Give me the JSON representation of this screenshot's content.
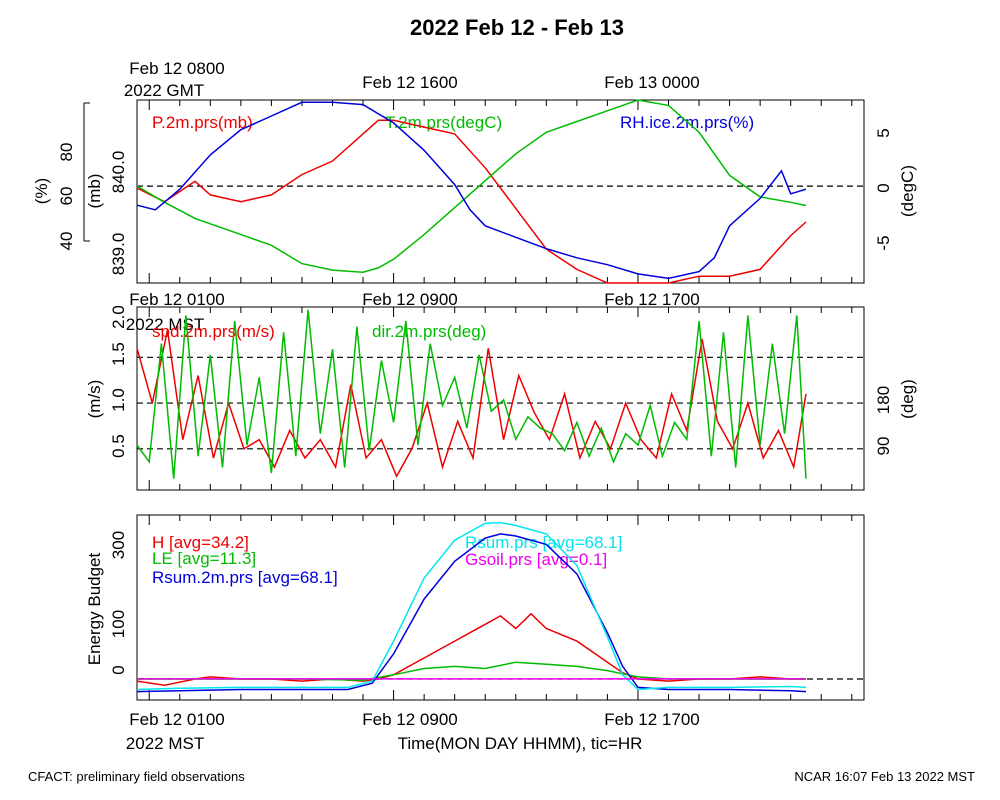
{
  "title": "2022 Feb 12 - Feb 13",
  "footer": {
    "left": "CFACT: preliminary field observations",
    "right": "NCAR 16:07 Feb 13 2022 MST"
  },
  "colors": {
    "red": "#ee0000",
    "green": "#00bb00",
    "blue": "#0000dd",
    "cyan": "#00e5ee",
    "magenta": "#ee00ee"
  },
  "panels": {
    "p1": {
      "top_ticks": [
        {
          "line1": "Feb 12 0800",
          "line2": "2022 GMT"
        },
        {
          "line1": "Feb 12 1600",
          "line2": ""
        },
        {
          "line1": "Feb 13 0000",
          "line2": ""
        }
      ],
      "legend": [
        "P.2m.prs(mb)",
        "T.2m.prs(degC)",
        "RH.ice.2m.prs(%)"
      ],
      "left_axis_pct": {
        "label": "(%)",
        "ticks": [
          "40",
          "60",
          "80"
        ]
      },
      "left_axis_mb": {
        "label": "(mb)",
        "ticks": [
          "839.0",
          "840.0"
        ]
      },
      "right_axis": {
        "label": "(degC)",
        "ticks": [
          "-5",
          "0",
          "5"
        ]
      }
    },
    "p2": {
      "top_ticks": [
        {
          "line1": "Feb 12 0100",
          "line2": "2022 MST"
        },
        {
          "line1": "Feb 12 0900",
          "line2": ""
        },
        {
          "line1": "Feb 12 1700",
          "line2": ""
        }
      ],
      "legend": [
        "spd.2m.prs(m/s)",
        "dir.2m.prs(deg)"
      ],
      "left_axis": {
        "label": "(m/s)",
        "ticks": [
          "0.5",
          "1.0",
          "1.5",
          "2.0"
        ]
      },
      "right_axis": {
        "label": "(deg)",
        "ticks": [
          "90",
          "180"
        ]
      }
    },
    "p3": {
      "legend_left": [
        "H [avg=34.2]",
        "LE [avg=11.3]",
        "Rsum.2m.prs [avg=68.1]"
      ],
      "legend_right": [
        "Rsum.prs [avg=68.1]",
        "Gsoil.prs [avg=0.1]"
      ],
      "left_axis": {
        "label": "Energy Budget",
        "ticks": [
          "0",
          "100",
          "300"
        ]
      }
    }
  },
  "x_axis": {
    "ticks": [
      {
        "line1": "Feb 12 0100",
        "line2": "2022 MST"
      },
      {
        "line1": "Feb 12 0900",
        "line2": ""
      },
      {
        "line1": "Feb 12 1700",
        "line2": ""
      }
    ],
    "label": "Time(MON DAY HHMM), tic=HR"
  },
  "chart_data": [
    {
      "type": "line",
      "x_unit": "hour MST (Feb 12)",
      "xlim": [
        0.6,
        24.4
      ],
      "series": [
        {
          "name": "P.2m.prs(mb)",
          "axis": "mb",
          "ylim": [
            838.7,
            841.4
          ],
          "x": [
            0.6,
            1.5,
            2.5,
            3.0,
            4.0,
            5.0,
            6.0,
            7.0,
            8.0,
            8.5,
            9.0,
            10.0,
            11.0,
            12.0,
            13.0,
            14.0,
            15.0,
            16.0,
            17.0,
            18.0,
            19.0,
            20.0,
            21.0,
            22.0,
            22.5
          ],
          "values": [
            840.1,
            839.9,
            840.2,
            840.0,
            839.9,
            840.0,
            840.3,
            840.5,
            840.9,
            841.1,
            841.1,
            841.0,
            840.9,
            840.4,
            839.8,
            839.2,
            838.9,
            838.7,
            838.7,
            838.7,
            838.8,
            838.8,
            838.9,
            839.4,
            839.6
          ]
        },
        {
          "name": "T.2m.prs(degC)",
          "axis": "degC",
          "ylim": [
            -9,
            8
          ],
          "x": [
            0.6,
            1.5,
            2.5,
            4.0,
            5.0,
            6.0,
            7.0,
            8.0,
            8.5,
            9.0,
            10.0,
            11.0,
            12.0,
            13.0,
            14.0,
            15.0,
            16.0,
            17.0,
            18.0,
            19.0,
            20.0,
            21.0,
            22.0,
            22.5
          ],
          "values": [
            0.0,
            -1.5,
            -3.0,
            -4.5,
            -5.5,
            -7.2,
            -7.8,
            -8.0,
            -7.6,
            -6.8,
            -4.5,
            -2.0,
            0.5,
            3.0,
            5.0,
            6.0,
            7.0,
            8.0,
            7.5,
            5.0,
            1.0,
            -1.0,
            -1.5,
            -1.8
          ]
        },
        {
          "name": "RH.ice.2m.prs(%)",
          "axis": "%",
          "ylim": [
            25,
            105
          ],
          "x": [
            0.6,
            1.2,
            2.0,
            3.0,
            4.0,
            5.0,
            6.0,
            6.5,
            7.0,
            8.0,
            9.0,
            10.0,
            11.0,
            11.5,
            12.0,
            13.0,
            14.0,
            15.0,
            16.0,
            17.0,
            18.0,
            19.0,
            19.5,
            20.0,
            21.0,
            21.7,
            22.0,
            22.5
          ],
          "values": [
            59,
            57,
            66,
            81,
            92,
            98,
            104,
            104,
            104,
            103,
            95,
            83,
            68,
            57,
            50,
            45,
            40,
            36,
            33,
            29,
            27,
            30,
            36,
            50,
            62,
            74,
            64,
            66
          ]
        }
      ]
    },
    {
      "type": "line",
      "x_unit": "hour MST (Feb 12)",
      "xlim": [
        0.6,
        24.4
      ],
      "series": [
        {
          "name": "spd.2m.prs(m/s)",
          "axis": "m/s",
          "ylim": [
            0.05,
            2.05
          ],
          "x": [
            0.6,
            1.1,
            1.6,
            2.1,
            2.6,
            3.1,
            3.6,
            4.1,
            4.6,
            5.1,
            5.6,
            6.1,
            6.6,
            7.1,
            7.6,
            8.1,
            8.6,
            9.1,
            9.6,
            10.1,
            10.6,
            11.1,
            11.6,
            12.1,
            12.6,
            13.1,
            13.6,
            14.1,
            14.6,
            15.1,
            15.6,
            16.1,
            16.6,
            17.1,
            17.6,
            18.1,
            18.6,
            19.1,
            19.6,
            20.1,
            20.6,
            21.1,
            21.6,
            22.1,
            22.5
          ],
          "values": [
            1.6,
            1.0,
            1.8,
            0.6,
            1.3,
            0.4,
            1.0,
            0.5,
            0.6,
            0.3,
            0.7,
            0.4,
            0.6,
            0.3,
            1.2,
            0.4,
            0.6,
            0.2,
            0.5,
            1.0,
            0.3,
            0.8,
            0.4,
            1.6,
            0.6,
            1.3,
            0.9,
            0.6,
            1.1,
            0.4,
            0.8,
            0.5,
            1.0,
            0.6,
            0.4,
            1.1,
            0.7,
            1.7,
            0.8,
            0.5,
            1.0,
            0.4,
            0.7,
            0.3,
            1.1
          ]
        },
        {
          "name": "dir.2m.prs(deg)",
          "axis": "deg",
          "ylim": [
            0,
            325
          ],
          "x": [
            0.6,
            1.0,
            1.4,
            1.8,
            2.2,
            2.6,
            3.0,
            3.4,
            3.8,
            4.2,
            4.6,
            5.0,
            5.4,
            5.8,
            6.2,
            6.6,
            7.0,
            7.4,
            7.8,
            8.2,
            8.6,
            9.0,
            9.4,
            9.8,
            10.2,
            10.6,
            11.0,
            11.4,
            11.8,
            12.2,
            12.6,
            13.0,
            13.4,
            13.8,
            14.2,
            14.6,
            15.0,
            15.4,
            15.8,
            16.2,
            16.6,
            17.0,
            17.4,
            17.8,
            18.2,
            18.6,
            19.0,
            19.4,
            19.8,
            20.2,
            20.6,
            21.0,
            21.4,
            21.8,
            22.2,
            22.5
          ],
          "values": [
            80,
            50,
            260,
            20,
            310,
            60,
            240,
            40,
            300,
            80,
            200,
            30,
            280,
            60,
            320,
            100,
            250,
            40,
            290,
            70,
            230,
            120,
            300,
            80,
            260,
            150,
            200,
            110,
            240,
            140,
            160,
            90,
            130,
            110,
            100,
            70,
            120,
            60,
            110,
            50,
            100,
            80,
            150,
            60,
            120,
            90,
            300,
            60,
            280,
            40,
            310,
            80,
            260,
            100,
            310,
            20
          ]
        }
      ]
    },
    {
      "type": "line",
      "x_unit": "hour MST (Feb 12)",
      "xlim": [
        0.6,
        24.4
      ],
      "ylim": [
        -50,
        390
      ],
      "series": [
        {
          "name": "H [avg=34.2]",
          "x": [
            0.6,
            1.5,
            2.5,
            3.0,
            4.0,
            5.0,
            6.0,
            7.0,
            8.0,
            8.5,
            9.0,
            10.0,
            11.0,
            11.5,
            12.0,
            12.5,
            13.0,
            13.5,
            14.0,
            15.0,
            16.0,
            16.5,
            17.0,
            18.0,
            19.0,
            20.0,
            21.0,
            22.0,
            22.5
          ],
          "values": [
            -5,
            -15,
            0,
            5,
            0,
            0,
            -5,
            0,
            -5,
            0,
            10,
            50,
            90,
            110,
            130,
            150,
            120,
            155,
            120,
            90,
            40,
            15,
            0,
            -5,
            0,
            0,
            5,
            0,
            0
          ]
        },
        {
          "name": "LE [avg=11.3]",
          "x": [
            0.6,
            2,
            4,
            6,
            8,
            9,
            10,
            11,
            12,
            13,
            14,
            15,
            16,
            17,
            18,
            20,
            22,
            22.5
          ],
          "values": [
            0,
            0,
            0,
            0,
            -3,
            10,
            25,
            30,
            25,
            40,
            35,
            30,
            20,
            5,
            0,
            0,
            0,
            0
          ]
        },
        {
          "name": "Rsum.2m.prs [avg=68.1]",
          "x": [
            0.6,
            2,
            4,
            6,
            7.5,
            8.3,
            9.0,
            10.0,
            11.0,
            12.0,
            12.5,
            13.0,
            14.0,
            15.0,
            16.0,
            16.5,
            17.0,
            18.0,
            20.0,
            22.0,
            22.5
          ],
          "values": [
            -30,
            -28,
            -25,
            -25,
            -25,
            -10,
            60,
            190,
            280,
            335,
            345,
            340,
            320,
            250,
            110,
            30,
            -20,
            -25,
            -25,
            -28,
            -30
          ]
        },
        {
          "name": "Rsum.prs [avg=68.1]",
          "x": [
            0.6,
            2,
            4,
            6,
            7.5,
            8.3,
            9.0,
            10.0,
            11.0,
            12.0,
            12.5,
            13.0,
            14.0,
            15.0,
            16.0,
            16.5,
            17.0,
            18.0,
            20.0,
            22.0,
            22.5
          ],
          "values": [
            -25,
            -22,
            -20,
            -20,
            -20,
            -5,
            90,
            240,
            330,
            370,
            372,
            365,
            345,
            270,
            100,
            10,
            -25,
            -20,
            -20,
            -18,
            -20
          ]
        },
        {
          "name": "Gsoil.prs [avg=0.1]",
          "x": [
            0.6,
            22.5
          ],
          "values": [
            0.1,
            0.1
          ]
        }
      ]
    }
  ]
}
